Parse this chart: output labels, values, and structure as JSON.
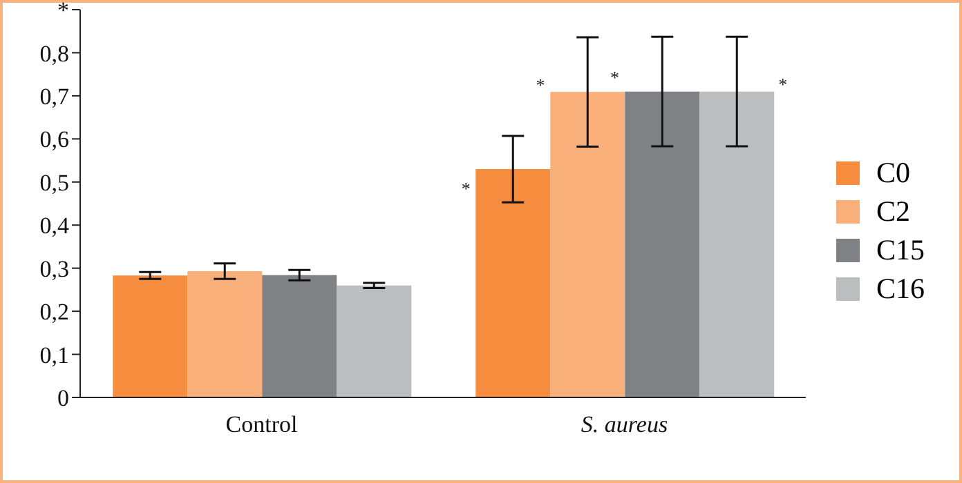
{
  "chart_data": {
    "type": "bar",
    "categories": [
      "Control",
      "S. aureus"
    ],
    "series": [
      {
        "name": "C0",
        "color": "#f58c3e",
        "values": [
          0.283,
          0.53
        ],
        "errors": [
          0.008,
          0.077
        ]
      },
      {
        "name": "C2",
        "color": "#f8af79",
        "values": [
          0.293,
          0.709
        ],
        "errors": [
          0.018,
          0.127
        ]
      },
      {
        "name": "C15",
        "color": "#808185",
        "values": [
          0.284,
          0.71
        ],
        "errors": [
          0.012,
          0.127
        ]
      },
      {
        "name": "C16",
        "color": "#bcbdbf",
        "values": [
          0.26,
          0.71
        ],
        "errors": [
          0.006,
          0.127
        ]
      }
    ],
    "ylim": [
      0,
      0.9
    ],
    "yticks": [
      {
        "value": 0,
        "label": "0"
      },
      {
        "value": 0.1,
        "label": "0,1"
      },
      {
        "value": 0.2,
        "label": "0,2"
      },
      {
        "value": 0.3,
        "label": "0,3"
      },
      {
        "value": 0.4,
        "label": "0,4"
      },
      {
        "value": 0.5,
        "label": "0,5"
      },
      {
        "value": 0.6,
        "label": "0,6"
      },
      {
        "value": 0.7,
        "label": "0,7"
      },
      {
        "value": 0.8,
        "label": "0,8"
      },
      {
        "value": 0.9,
        "label": "*"
      }
    ],
    "annotations": [
      "*",
      "*",
      "*",
      "*"
    ],
    "legend": "right",
    "grid": false
  }
}
